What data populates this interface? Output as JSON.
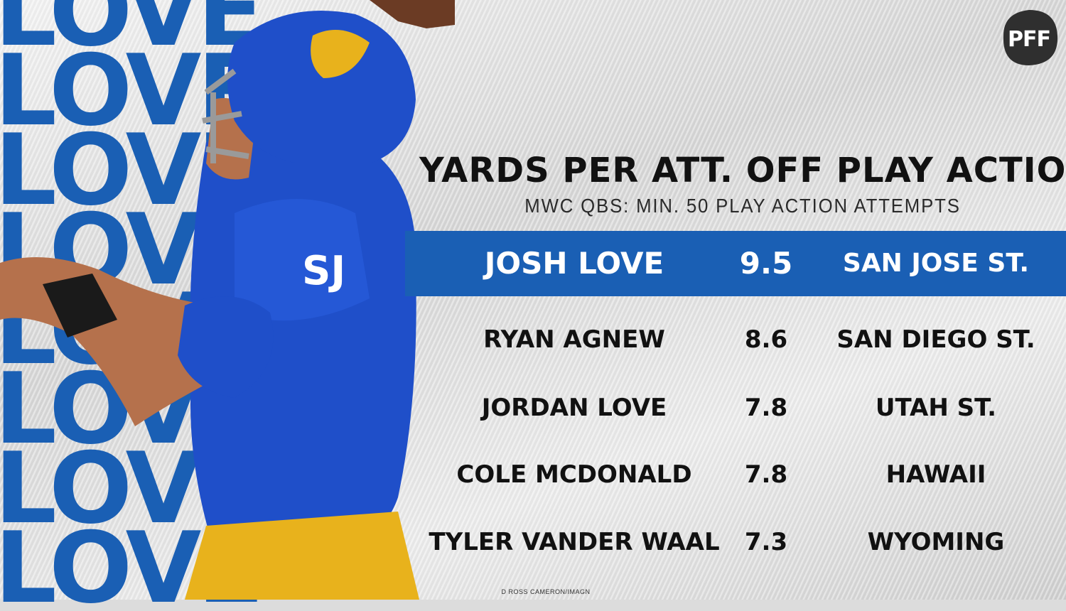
{
  "brand": {
    "logo_text": "PFF",
    "logo_bg": "#2f2f2f"
  },
  "background": {
    "repeated_word": "LOVE",
    "repeat_count": 8,
    "accent_color": "#1a5fb4"
  },
  "photo_credit": "D ROSS CAMERON/IMAGN",
  "chart_data": {
    "type": "table",
    "title": "YARDS PER ATT. OFF PLAY ACTION",
    "subtitle": "MWC QBS: MIN. 50 PLAY ACTION ATTEMPTS",
    "highlight_color": "#1a5fb4",
    "highlight_row": 0,
    "rows": [
      {
        "player": "JOSH LOVE",
        "value": "9.5",
        "team": "SAN JOSE ST."
      },
      {
        "player": "RYAN AGNEW",
        "value": "8.6",
        "team": "SAN DIEGO ST."
      },
      {
        "player": "JORDAN LOVE",
        "value": "7.8",
        "team": "UTAH ST."
      },
      {
        "player": "COLE MCDONALD",
        "value": "7.8",
        "team": "HAWAII"
      },
      {
        "player": "TYLER VANDER WAAL",
        "value": "7.3",
        "team": "WYOMING"
      }
    ]
  }
}
